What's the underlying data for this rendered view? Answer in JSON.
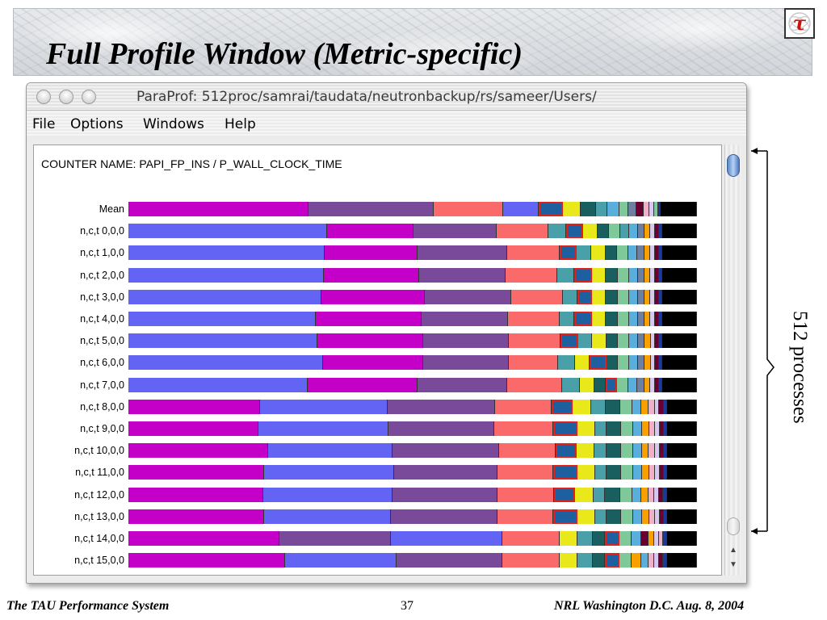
{
  "slide": {
    "title": "Full Profile Window (Metric-specific)",
    "footer_left": "The TAU Performance System",
    "page_number": "37",
    "footer_right": "NRL Washington D.C. Aug. 8, 2004",
    "annotation": "512 processes",
    "logo_glyph": "τ"
  },
  "window": {
    "title": "ParaProf: 512proc/samrai/taudata/neutronbackup/rs/sameer/Users/",
    "menu": [
      "File",
      "Options",
      "Windows",
      "Help"
    ],
    "counter_name": "COUNTER NAME: PAPI_FP_INS / P_WALL_CLOCK_TIME"
  },
  "colors": {
    "purple_blue": "#6464f4",
    "magenta": "#c400c8",
    "violet": "#7a4a9a",
    "salmon": "#fa6a6a",
    "teal_mid": "#4aa0a8",
    "yellow": "#e8e81a",
    "dark_teal": "#1a5f5f",
    "sky": "#5aaedc",
    "mint": "#7ec89a",
    "slate": "#6f7fa0",
    "orange": "#f7a000",
    "maroon": "#6a0030",
    "lavender": "#d8c8f0",
    "pink": "#f0b0c8",
    "navy": "#1a3a9a",
    "black": "#000000",
    "highlight": "#e0201b",
    "highlight_fill": "#1e5fa0"
  },
  "profile": {
    "rows": [
      {
        "label": "Mean",
        "segs": [
          [
            "magenta",
            30
          ],
          [
            "violet",
            21
          ],
          [
            "salmon",
            11.5
          ],
          [
            "purple_blue",
            6
          ],
          [
            "highlight_fill",
            4,
            1
          ],
          [
            "yellow",
            3
          ],
          [
            "dark_teal",
            2.5
          ],
          [
            "teal_mid",
            2
          ],
          [
            "sky",
            2
          ],
          [
            "mint",
            1.5
          ],
          [
            "slate",
            1.3
          ],
          [
            "maroon",
            1.2
          ],
          [
            "pink",
            1
          ],
          [
            "lavender",
            0.8
          ],
          [
            "mint",
            0.6
          ],
          [
            "navy",
            0.5
          ],
          [
            "black",
            6
          ]
        ]
      },
      {
        "label": "n,c,t   0,0,0",
        "segs": [
          [
            "purple_blue",
            34.5
          ],
          [
            "magenta",
            15
          ],
          [
            "violet",
            14.5
          ],
          [
            "salmon",
            9
          ],
          [
            "teal_mid",
            3
          ],
          [
            "highlight_fill",
            3,
            1
          ],
          [
            "yellow",
            2.5
          ],
          [
            "dark_teal",
            2
          ],
          [
            "mint",
            2
          ],
          [
            "teal_mid",
            1.5
          ],
          [
            "sky",
            1.5
          ],
          [
            "slate",
            1.2
          ],
          [
            "orange",
            1
          ],
          [
            "lavender",
            0.8
          ],
          [
            "maroon",
            0.7
          ],
          [
            "navy",
            0.6
          ],
          [
            "black",
            6
          ]
        ]
      },
      {
        "label": "n,c,t   1,0,0",
        "segs": [
          [
            "purple_blue",
            34
          ],
          [
            "magenta",
            16
          ],
          [
            "violet",
            15.5
          ],
          [
            "salmon",
            9
          ],
          [
            "highlight_fill",
            3,
            1
          ],
          [
            "teal_mid",
            2.5
          ],
          [
            "yellow",
            2.5
          ],
          [
            "dark_teal",
            2
          ],
          [
            "mint",
            2
          ],
          [
            "sky",
            1.5
          ],
          [
            "slate",
            1.2
          ],
          [
            "orange",
            1
          ],
          [
            "lavender",
            0.8
          ],
          [
            "maroon",
            0.7
          ],
          [
            "navy",
            0.6
          ],
          [
            "black",
            6
          ]
        ]
      },
      {
        "label": "n,c,t   2,0,0",
        "segs": [
          [
            "purple_blue",
            34
          ],
          [
            "magenta",
            16.5
          ],
          [
            "violet",
            15
          ],
          [
            "salmon",
            9
          ],
          [
            "teal_mid",
            3
          ],
          [
            "highlight_fill",
            3,
            1
          ],
          [
            "yellow",
            2.5
          ],
          [
            "dark_teal",
            2
          ],
          [
            "mint",
            2
          ],
          [
            "sky",
            1.5
          ],
          [
            "slate",
            1.2
          ],
          [
            "orange",
            1
          ],
          [
            "lavender",
            0.8
          ],
          [
            "maroon",
            0.7
          ],
          [
            "navy",
            0.6
          ],
          [
            "black",
            6
          ]
        ]
      },
      {
        "label": "n,c,t   3,0,0",
        "segs": [
          [
            "purple_blue",
            33.5
          ],
          [
            "magenta",
            18
          ],
          [
            "violet",
            15
          ],
          [
            "salmon",
            9
          ],
          [
            "teal_mid",
            2.5
          ],
          [
            "highlight_fill",
            2.5,
            1
          ],
          [
            "yellow",
            2.5
          ],
          [
            "dark_teal",
            2
          ],
          [
            "mint",
            2
          ],
          [
            "sky",
            1.5
          ],
          [
            "slate",
            1.2
          ],
          [
            "orange",
            1
          ],
          [
            "lavender",
            0.8
          ],
          [
            "maroon",
            0.7
          ],
          [
            "navy",
            0.6
          ],
          [
            "black",
            6
          ]
        ]
      },
      {
        "label": "n,c,t   4,0,0",
        "segs": [
          [
            "purple_blue",
            32.5
          ],
          [
            "magenta",
            18.5
          ],
          [
            "violet",
            15
          ],
          [
            "salmon",
            9
          ],
          [
            "teal_mid",
            2.5
          ],
          [
            "highlight_fill",
            3,
            1
          ],
          [
            "yellow",
            2.5
          ],
          [
            "dark_teal",
            2
          ],
          [
            "mint",
            2
          ],
          [
            "sky",
            1.5
          ],
          [
            "slate",
            1.2
          ],
          [
            "orange",
            1
          ],
          [
            "lavender",
            0.8
          ],
          [
            "maroon",
            0.7
          ],
          [
            "navy",
            0.6
          ],
          [
            "black",
            6
          ]
        ]
      },
      {
        "label": "n,c,t   5,0,0",
        "segs": [
          [
            "purple_blue",
            33
          ],
          [
            "magenta",
            18.5
          ],
          [
            "violet",
            15
          ],
          [
            "salmon",
            9
          ],
          [
            "highlight_fill",
            3,
            1
          ],
          [
            "teal_mid",
            2.5
          ],
          [
            "yellow",
            2.5
          ],
          [
            "dark_teal",
            2
          ],
          [
            "mint",
            2
          ],
          [
            "sky",
            1.5
          ],
          [
            "slate",
            1.2
          ],
          [
            "orange",
            1
          ],
          [
            "lavender",
            0.8
          ],
          [
            "maroon",
            0.7
          ],
          [
            "navy",
            0.6
          ],
          [
            "black",
            6
          ]
        ]
      },
      {
        "label": "n,c,t   6,0,0",
        "segs": [
          [
            "purple_blue",
            34
          ],
          [
            "magenta",
            17.5
          ],
          [
            "violet",
            15
          ],
          [
            "salmon",
            8.5
          ],
          [
            "teal_mid",
            3
          ],
          [
            "yellow",
            2.5
          ],
          [
            "highlight_fill",
            3,
            1
          ],
          [
            "dark_teal",
            2
          ],
          [
            "mint",
            2
          ],
          [
            "sky",
            1.5
          ],
          [
            "slate",
            1.2
          ],
          [
            "orange",
            1
          ],
          [
            "lavender",
            0.8
          ],
          [
            "maroon",
            0.7
          ],
          [
            "navy",
            0.6
          ],
          [
            "black",
            6
          ]
        ]
      },
      {
        "label": "n,c,t   7,0,0",
        "segs": [
          [
            "purple_blue",
            31
          ],
          [
            "magenta",
            19
          ],
          [
            "violet",
            15.5
          ],
          [
            "salmon",
            9.5
          ],
          [
            "teal_mid",
            3
          ],
          [
            "yellow",
            2.5
          ],
          [
            "dark_teal",
            2
          ],
          [
            "highlight_fill",
            2,
            1
          ],
          [
            "mint",
            2
          ],
          [
            "sky",
            1.5
          ],
          [
            "slate",
            1.2
          ],
          [
            "orange",
            1
          ],
          [
            "lavender",
            0.8
          ],
          [
            "maroon",
            0.7
          ],
          [
            "navy",
            0.6
          ],
          [
            "black",
            6
          ]
        ]
      },
      {
        "label": "n,c,t   8,0,0",
        "segs": [
          [
            "magenta",
            22
          ],
          [
            "purple_blue",
            21.5
          ],
          [
            "violet",
            18
          ],
          [
            "salmon",
            9.5
          ],
          [
            "highlight_fill",
            3.5,
            1
          ],
          [
            "yellow",
            3
          ],
          [
            "teal_mid",
            2.5
          ],
          [
            "dark_teal",
            2.5
          ],
          [
            "mint",
            2
          ],
          [
            "sky",
            1.5
          ],
          [
            "orange",
            1.2
          ],
          [
            "pink",
            1
          ],
          [
            "lavender",
            0.8
          ],
          [
            "maroon",
            0.7
          ],
          [
            "navy",
            0.6
          ],
          [
            "black",
            5
          ]
        ]
      },
      {
        "label": "n,c,t   9,0,0",
        "segs": [
          [
            "magenta",
            22
          ],
          [
            "purple_blue",
            22
          ],
          [
            "violet",
            18
          ],
          [
            "salmon",
            10
          ],
          [
            "highlight_fill",
            4,
            1
          ],
          [
            "yellow",
            3
          ],
          [
            "teal_mid",
            2
          ],
          [
            "dark_teal",
            2.5
          ],
          [
            "mint",
            2
          ],
          [
            "sky",
            1.5
          ],
          [
            "orange",
            1.2
          ],
          [
            "pink",
            1
          ],
          [
            "lavender",
            0.8
          ],
          [
            "maroon",
            0.7
          ],
          [
            "navy",
            0.6
          ],
          [
            "black",
            5
          ]
        ]
      },
      {
        "label": "n,c,t   10,0,0",
        "segs": [
          [
            "magenta",
            23.5
          ],
          [
            "purple_blue",
            21
          ],
          [
            "violet",
            18
          ],
          [
            "salmon",
            9.5
          ],
          [
            "highlight_fill",
            3.5,
            1
          ],
          [
            "yellow",
            3
          ],
          [
            "teal_mid",
            2
          ],
          [
            "dark_teal",
            2.5
          ],
          [
            "mint",
            2
          ],
          [
            "sky",
            1.5
          ],
          [
            "orange",
            1.2
          ],
          [
            "pink",
            1
          ],
          [
            "lavender",
            0.8
          ],
          [
            "maroon",
            0.7
          ],
          [
            "navy",
            0.6
          ],
          [
            "black",
            5
          ]
        ]
      },
      {
        "label": "n,c,t   11,0,0",
        "segs": [
          [
            "magenta",
            23
          ],
          [
            "purple_blue",
            22
          ],
          [
            "violet",
            17.5
          ],
          [
            "salmon",
            9.5
          ],
          [
            "highlight_fill",
            4,
            1
          ],
          [
            "yellow",
            3
          ],
          [
            "teal_mid",
            2
          ],
          [
            "dark_teal",
            2.5
          ],
          [
            "mint",
            2
          ],
          [
            "sky",
            1.5
          ],
          [
            "orange",
            1.2
          ],
          [
            "pink",
            1
          ],
          [
            "lavender",
            0.8
          ],
          [
            "maroon",
            0.7
          ],
          [
            "navy",
            0.6
          ],
          [
            "black",
            5
          ]
        ]
      },
      {
        "label": "n,c,t   12,0,0",
        "segs": [
          [
            "magenta",
            22.5
          ],
          [
            "purple_blue",
            21.5
          ],
          [
            "violet",
            17.5
          ],
          [
            "salmon",
            9.5
          ],
          [
            "highlight_fill",
            3.5,
            1
          ],
          [
            "yellow",
            3
          ],
          [
            "teal_mid",
            2
          ],
          [
            "dark_teal",
            2.5
          ],
          [
            "mint",
            2
          ],
          [
            "sky",
            1.5
          ],
          [
            "orange",
            1.2
          ],
          [
            "pink",
            1
          ],
          [
            "lavender",
            0.8
          ],
          [
            "maroon",
            0.7
          ],
          [
            "navy",
            0.6
          ],
          [
            "black",
            5
          ]
        ]
      },
      {
        "label": "n,c,t   13,0,0",
        "segs": [
          [
            "magenta",
            23
          ],
          [
            "purple_blue",
            21.5
          ],
          [
            "violet",
            18
          ],
          [
            "salmon",
            9.5
          ],
          [
            "highlight_fill",
            4,
            1
          ],
          [
            "yellow",
            3
          ],
          [
            "teal_mid",
            2
          ],
          [
            "dark_teal",
            2.5
          ],
          [
            "mint",
            2
          ],
          [
            "sky",
            1.5
          ],
          [
            "orange",
            1.2
          ],
          [
            "pink",
            1
          ],
          [
            "lavender",
            0.8
          ],
          [
            "maroon",
            0.7
          ],
          [
            "navy",
            0.6
          ],
          [
            "black",
            5
          ]
        ]
      },
      {
        "label": "n,c,t   14,0,0",
        "segs": [
          [
            "magenta",
            25
          ],
          [
            "violet",
            18.5
          ],
          [
            "purple_blue",
            18.5
          ],
          [
            "salmon",
            9.5
          ],
          [
            "yellow",
            3
          ],
          [
            "teal_mid",
            2.5
          ],
          [
            "dark_teal",
            2
          ],
          [
            "highlight_fill",
            2.5,
            1
          ],
          [
            "mint",
            2
          ],
          [
            "sky",
            1.5
          ],
          [
            "maroon",
            1.2
          ],
          [
            "orange",
            1
          ],
          [
            "lavender",
            0.8
          ],
          [
            "pink",
            0.7
          ],
          [
            "navy",
            0.6
          ],
          [
            "black",
            5
          ]
        ]
      },
      {
        "label": "n,c,t   15,0,0",
        "segs": [
          [
            "magenta",
            26
          ],
          [
            "purple_blue",
            18.5
          ],
          [
            "violet",
            17.5
          ],
          [
            "salmon",
            9.5
          ],
          [
            "yellow",
            3
          ],
          [
            "teal_mid",
            2.5
          ],
          [
            "dark_teal",
            2
          ],
          [
            "highlight_fill",
            2.5,
            1
          ],
          [
            "mint",
            2
          ],
          [
            "orange",
            1.5
          ],
          [
            "sky",
            1.2
          ],
          [
            "pink",
            1
          ],
          [
            "lavender",
            0.8
          ],
          [
            "maroon",
            0.7
          ],
          [
            "navy",
            0.6
          ],
          [
            "black",
            5
          ]
        ]
      }
    ]
  }
}
